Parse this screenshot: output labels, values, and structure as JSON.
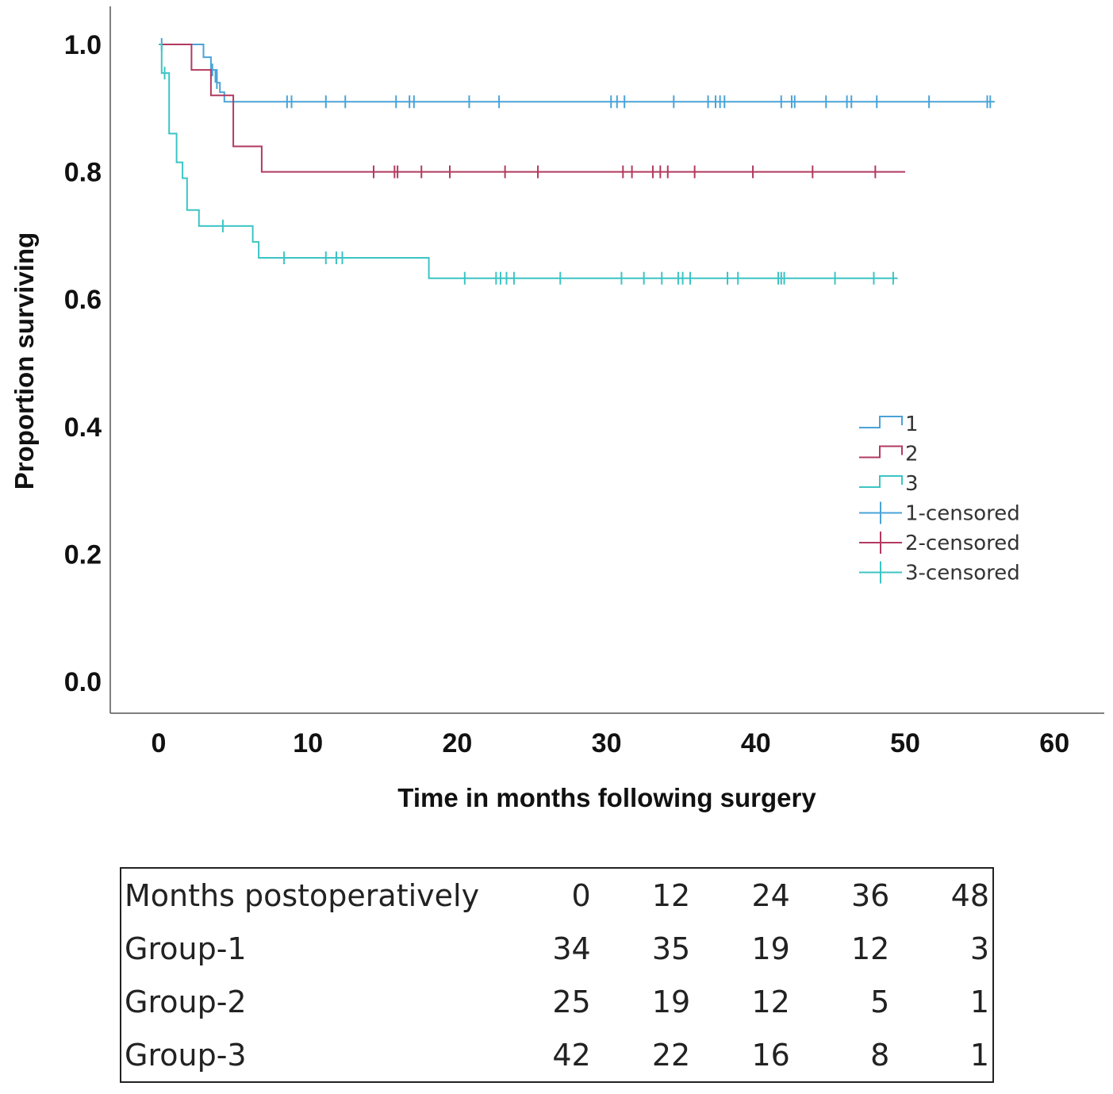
{
  "chart_data": {
    "type": "line",
    "title": "",
    "xlabel": "Time in months following surgery",
    "ylabel": "Proportion surviving",
    "xlim": [
      -3,
      63
    ],
    "ylim": [
      -0.05,
      1.06
    ],
    "xticks": [
      0,
      10,
      20,
      30,
      40,
      50,
      60
    ],
    "yticks": [
      0.0,
      0.2,
      0.4,
      0.6,
      0.8,
      1.0
    ],
    "ytick_labels": [
      "0.0",
      "0.2",
      "0.4",
      "0.6",
      "0.8",
      "1.0"
    ],
    "legend_position": "right",
    "series": [
      {
        "name": "1",
        "color": "#4aa3d8",
        "steps": [
          [
            0,
            1.0
          ],
          [
            3.0,
            0.98
          ],
          [
            3.5,
            0.96
          ],
          [
            3.9,
            0.94
          ],
          [
            4.1,
            0.925
          ],
          [
            4.4,
            0.91
          ],
          [
            56,
            0.91
          ]
        ],
        "censored": [
          [
            0.2,
            1.0
          ],
          [
            3.6,
            0.96
          ],
          [
            3.8,
            0.95
          ],
          [
            3.9,
            0.94
          ],
          [
            8.6,
            0.91
          ],
          [
            8.9,
            0.91
          ],
          [
            11.2,
            0.91
          ],
          [
            12.5,
            0.91
          ],
          [
            15.9,
            0.91
          ],
          [
            16.8,
            0.91
          ],
          [
            17.1,
            0.91
          ],
          [
            20.8,
            0.91
          ],
          [
            22.8,
            0.91
          ],
          [
            30.3,
            0.91
          ],
          [
            30.7,
            0.91
          ],
          [
            31.2,
            0.91
          ],
          [
            34.5,
            0.91
          ],
          [
            36.8,
            0.91
          ],
          [
            37.3,
            0.91
          ],
          [
            37.6,
            0.91
          ],
          [
            37.9,
            0.91
          ],
          [
            41.7,
            0.91
          ],
          [
            42.4,
            0.91
          ],
          [
            42.6,
            0.91
          ],
          [
            44.7,
            0.91
          ],
          [
            46.1,
            0.91
          ],
          [
            46.4,
            0.91
          ],
          [
            48.1,
            0.91
          ],
          [
            51.6,
            0.91
          ],
          [
            55.5,
            0.91
          ],
          [
            55.7,
            0.91
          ]
        ]
      },
      {
        "name": "2",
        "color": "#b23a60",
        "steps": [
          [
            0,
            1.0
          ],
          [
            2.2,
            0.96
          ],
          [
            3.5,
            0.92
          ],
          [
            5.0,
            0.84
          ],
          [
            6.9,
            0.8
          ],
          [
            50,
            0.8
          ]
        ],
        "censored": [
          [
            14.4,
            0.8
          ],
          [
            15.8,
            0.8
          ],
          [
            16.0,
            0.8
          ],
          [
            17.6,
            0.8
          ],
          [
            19.5,
            0.8
          ],
          [
            23.2,
            0.8
          ],
          [
            25.4,
            0.8
          ],
          [
            31.1,
            0.8
          ],
          [
            31.7,
            0.8
          ],
          [
            33.1,
            0.8
          ],
          [
            33.6,
            0.8
          ],
          [
            34.1,
            0.8
          ],
          [
            35.9,
            0.8
          ],
          [
            39.8,
            0.8
          ],
          [
            43.8,
            0.8
          ],
          [
            48.0,
            0.8
          ]
        ]
      },
      {
        "name": "3",
        "color": "#3cc4c4",
        "steps": [
          [
            0,
            1.0
          ],
          [
            0.2,
            0.955
          ],
          [
            0.7,
            0.86
          ],
          [
            1.2,
            0.815
          ],
          [
            1.6,
            0.79
          ],
          [
            1.9,
            0.74
          ],
          [
            2.7,
            0.715
          ],
          [
            6.3,
            0.69
          ],
          [
            6.7,
            0.665
          ],
          [
            7.6,
            0.665
          ],
          [
            7.7,
            0.665
          ],
          [
            18.1,
            0.633
          ],
          [
            49.5,
            0.633
          ]
        ],
        "censored": [
          [
            0.4,
            0.955
          ],
          [
            4.3,
            0.715
          ],
          [
            8.4,
            0.665
          ],
          [
            11.2,
            0.665
          ],
          [
            11.9,
            0.665
          ],
          [
            12.3,
            0.665
          ],
          [
            20.5,
            0.633
          ],
          [
            22.6,
            0.633
          ],
          [
            22.9,
            0.633
          ],
          [
            23.3,
            0.633
          ],
          [
            23.8,
            0.633
          ],
          [
            26.9,
            0.633
          ],
          [
            31.0,
            0.633
          ],
          [
            32.5,
            0.633
          ],
          [
            33.7,
            0.633
          ],
          [
            34.8,
            0.633
          ],
          [
            35.1,
            0.633
          ],
          [
            35.6,
            0.633
          ],
          [
            38.1,
            0.633
          ],
          [
            38.8,
            0.633
          ],
          [
            41.5,
            0.633
          ],
          [
            41.7,
            0.633
          ],
          [
            41.9,
            0.633
          ],
          [
            45.3,
            0.633
          ],
          [
            47.9,
            0.633
          ],
          [
            49.2,
            0.633
          ]
        ]
      }
    ],
    "legend": [
      {
        "label": "1",
        "kind": "step",
        "color": "#4aa3d8"
      },
      {
        "label": "2",
        "kind": "step",
        "color": "#b23a60"
      },
      {
        "label": "3",
        "kind": "step",
        "color": "#3cc4c4"
      },
      {
        "label": "1-censored",
        "kind": "censor",
        "color": "#4aa3d8"
      },
      {
        "label": "2-censored",
        "kind": "censor",
        "color": "#b23a60"
      },
      {
        "label": "3-censored",
        "kind": "censor",
        "color": "#3cc4c4"
      }
    ]
  },
  "table": {
    "header": {
      "label": "Months postoperatively",
      "values": [
        "0",
        "12",
        "24",
        "36",
        "48"
      ]
    },
    "rows": [
      {
        "label": "Group-1",
        "values": [
          "34",
          "35",
          "19",
          "12",
          "3"
        ]
      },
      {
        "label": "Group-2",
        "values": [
          "25",
          "19",
          "12",
          "5",
          "1"
        ]
      },
      {
        "label": "Group-3",
        "values": [
          "42",
          "22",
          "16",
          "8",
          "1"
        ]
      }
    ]
  }
}
